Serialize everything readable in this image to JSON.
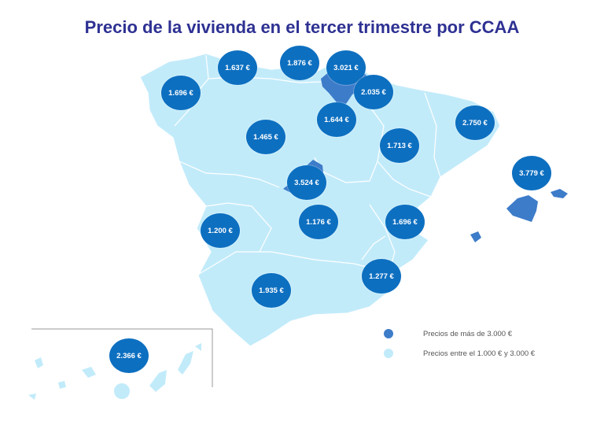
{
  "title": "Precio de la vivienda en el tercer trimestre por CCAA",
  "colors": {
    "high": "#3d7cc9",
    "normal": "#c2ebfa",
    "bubble": "#0d6fc0",
    "title": "#2e3192"
  },
  "legend": [
    {
      "label": "Precios de más de 3.000 €",
      "color_key": "high"
    },
    {
      "label": "Precios entre el 1.000 € y 3.000 €",
      "color_key": "normal"
    }
  ],
  "regions": [
    {
      "name": "Galicia",
      "price": "1.696 €",
      "category": "normal"
    },
    {
      "name": "Asturias",
      "price": "1.637 €",
      "category": "normal"
    },
    {
      "name": "Cantabria",
      "price": "1.876 €",
      "category": "normal"
    },
    {
      "name": "País Vasco",
      "price": "3.021 €",
      "category": "high"
    },
    {
      "name": "Navarra",
      "price": "2.035 €",
      "category": "normal"
    },
    {
      "name": "La Rioja",
      "price": "1.644 €",
      "category": "normal"
    },
    {
      "name": "Castilla y León",
      "price": "1.465 €",
      "category": "normal"
    },
    {
      "name": "Aragón",
      "price": "1.713 €",
      "category": "normal"
    },
    {
      "name": "Cataluña",
      "price": "2.750 €",
      "category": "normal"
    },
    {
      "name": "Madrid",
      "price": "3.524 €",
      "category": "high"
    },
    {
      "name": "Baleares",
      "price": "3.779 €",
      "category": "high"
    },
    {
      "name": "Extremadura",
      "price": "1.200 €",
      "category": "normal"
    },
    {
      "name": "Castilla-La Mancha",
      "price": "1.176 €",
      "category": "normal"
    },
    {
      "name": "Comunidad Valenciana",
      "price": "1.696 €",
      "category": "normal"
    },
    {
      "name": "Murcia",
      "price": "1.277 €",
      "category": "normal"
    },
    {
      "name": "Andalucía",
      "price": "1.935 €",
      "category": "normal"
    },
    {
      "name": "Canarias",
      "price": "2.366 €",
      "category": "normal"
    }
  ]
}
